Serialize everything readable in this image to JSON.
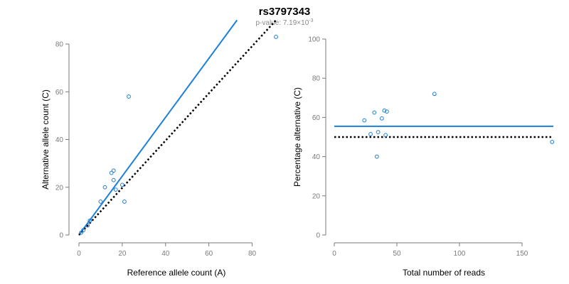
{
  "header": {
    "title": "rs3797343",
    "pvalue_prefix": "p-value: 7.19×10",
    "pvalue_exponent": "-3"
  },
  "colors": {
    "fit_line": "#1e7fd8",
    "points": "#1e7fd8",
    "reference_line": "#000000",
    "axis": "#7a7a7a"
  },
  "chart_data": [
    {
      "type": "scatter",
      "xlabel": "Reference allele count (A)",
      "ylabel": "Alternative allele count (C)",
      "xlim": [
        0,
        90
      ],
      "ylim": [
        0,
        80
      ],
      "xticks": [
        "0",
        "20",
        "40",
        "60",
        "80"
      ],
      "yticks": [
        "0",
        "20",
        "40",
        "60",
        "80"
      ],
      "xtick_values": [
        0,
        20,
        40,
        60,
        80
      ],
      "ytick_values": [
        0,
        20,
        40,
        60,
        80
      ],
      "points": [
        {
          "x": 1,
          "y": 1
        },
        {
          "x": 2,
          "y": 2
        },
        {
          "x": 4,
          "y": 4
        },
        {
          "x": 5,
          "y": 6
        },
        {
          "x": 10,
          "y": 14
        },
        {
          "x": 12,
          "y": 20
        },
        {
          "x": 15,
          "y": 26
        },
        {
          "x": 16,
          "y": 27
        },
        {
          "x": 16,
          "y": 23
        },
        {
          "x": 17,
          "y": 19
        },
        {
          "x": 20,
          "y": 21
        },
        {
          "x": 21,
          "y": 14
        },
        {
          "x": 23,
          "y": 58
        },
        {
          "x": 91,
          "y": 83
        }
      ],
      "fit_line": {
        "style": "solid",
        "x": [
          0,
          73
        ],
        "y": [
          0,
          90
        ]
      },
      "reference_line": {
        "style": "dotted",
        "x": [
          0,
          91
        ],
        "y": [
          0,
          90
        ]
      }
    },
    {
      "type": "scatter",
      "xlabel": "Total number of reads",
      "ylabel": "Percentage alternative (C)",
      "xlim": [
        0,
        175
      ],
      "ylim": [
        0,
        100
      ],
      "xticks": [
        "0",
        "50",
        "100",
        "150"
      ],
      "yticks": [
        "0",
        "20",
        "40",
        "60",
        "80",
        "100"
      ],
      "xtick_values": [
        0,
        50,
        100,
        150
      ],
      "ytick_values": [
        0,
        20,
        40,
        60,
        80,
        100
      ],
      "points": [
        {
          "x": 24,
          "y": 58.5
        },
        {
          "x": 29,
          "y": 51.5
        },
        {
          "x": 32,
          "y": 62.5
        },
        {
          "x": 34,
          "y": 40
        },
        {
          "x": 35,
          "y": 52.5
        },
        {
          "x": 38,
          "y": 59.5
        },
        {
          "x": 40,
          "y": 63.5
        },
        {
          "x": 41,
          "y": 51
        },
        {
          "x": 42,
          "y": 63
        },
        {
          "x": 80,
          "y": 72
        },
        {
          "x": 174,
          "y": 47.5
        }
      ],
      "fit_line": {
        "style": "solid",
        "x": [
          0,
          175
        ],
        "y": [
          55.5,
          55.5
        ]
      },
      "reference_line": {
        "style": "dotted",
        "x": [
          0,
          175
        ],
        "y": [
          50,
          50
        ]
      }
    }
  ]
}
